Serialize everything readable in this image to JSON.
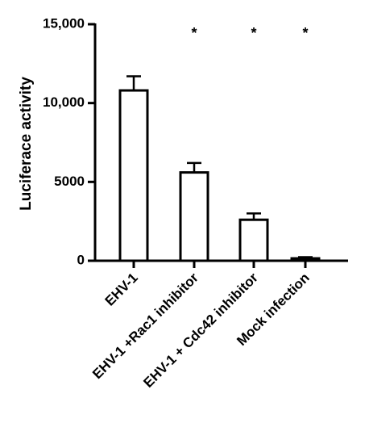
{
  "chart_data": {
    "type": "bar",
    "y_label": "Luciferace activity",
    "categories": [
      "EHV-1",
      "EHV-1 +Rac1 inhibitor",
      "EHV-1 + Cdc42 inhibitor",
      "Mock infection"
    ],
    "values": [
      10800,
      5600,
      2600,
      150
    ],
    "errors": [
      900,
      600,
      400,
      80
    ],
    "color": "#ffffff",
    "ylim": [
      0,
      15000
    ],
    "yticks": [
      0,
      5000,
      {
        "value": 10000,
        "label": "10,000"
      },
      {
        "value": 15000,
        "label": "15,000"
      }
    ],
    "annotations": [
      {
        "text": "*",
        "category": "EHV-1 +Rac1 inhibitor"
      },
      {
        "text": "*",
        "category": "EHV-1 + Cdc42 inhibitor"
      },
      {
        "text": "*",
        "category": "Mock infection"
      }
    ],
    "grid": false
  }
}
